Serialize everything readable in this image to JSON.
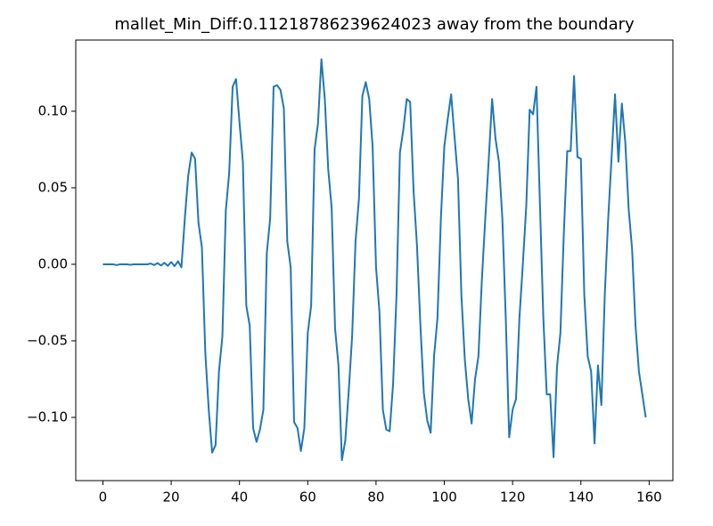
{
  "chart_data": {
    "type": "line",
    "title": "mallet_Min_Diff:0.11218786239624023 away from the boundary",
    "x": [
      0,
      1,
      2,
      3,
      4,
      5,
      6,
      7,
      8,
      9,
      10,
      11,
      12,
      13,
      14,
      15,
      16,
      17,
      18,
      19,
      20,
      21,
      22,
      23,
      24,
      25,
      26,
      27,
      28,
      29,
      30,
      31,
      32,
      33,
      34,
      35,
      36,
      37,
      38,
      39,
      40,
      41,
      42,
      43,
      44,
      45,
      46,
      47,
      48,
      49,
      50,
      51,
      52,
      53,
      54,
      55,
      56,
      57,
      58,
      59,
      60,
      61,
      62,
      63,
      64,
      65,
      66,
      67,
      68,
      69,
      70,
      71,
      72,
      73,
      74,
      75,
      76,
      77,
      78,
      79,
      80,
      81,
      82,
      83,
      84,
      85,
      86,
      87,
      88,
      89,
      90,
      91,
      92,
      93,
      94,
      95,
      96,
      97,
      98,
      99,
      100,
      101,
      102,
      103,
      104,
      105,
      106,
      107,
      108,
      109,
      110,
      111,
      112,
      113,
      114,
      115,
      116,
      117,
      118,
      119,
      120,
      121,
      122,
      123,
      124,
      125,
      126,
      127,
      128,
      129,
      130,
      131,
      132,
      133,
      134,
      135,
      136,
      137,
      138,
      139,
      140,
      141,
      142,
      143,
      144,
      145,
      146,
      147,
      148,
      149,
      150,
      151,
      152,
      153,
      154,
      155,
      156,
      157,
      158,
      159
    ],
    "series": [
      {
        "color": "#1f77b4",
        "values": [
          0,
          0,
          0,
          0,
          -0.0005,
          0,
          0,
          0,
          -0.0003,
          0,
          0,
          0,
          0,
          0,
          0.0005,
          -0.0005,
          0.0008,
          -0.0008,
          0.001,
          -0.001,
          0.0015,
          -0.0012,
          0.002,
          -0.002,
          0.03,
          0.058,
          0.073,
          0.069,
          0.027,
          0.011,
          -0.058,
          -0.095,
          -0.123,
          -0.118,
          -0.07,
          -0.047,
          0.035,
          0.06,
          0.116,
          0.121,
          0.093,
          0.067,
          -0.027,
          -0.04,
          -0.107,
          -0.116,
          -0.108,
          -0.095,
          0.007,
          0.03,
          0.116,
          0.117,
          0.114,
          0.102,
          0.015,
          -0.002,
          -0.103,
          -0.107,
          -0.122,
          -0.107,
          -0.045,
          -0.027,
          0.075,
          0.092,
          0.134,
          0.108,
          0.062,
          0.037,
          -0.042,
          -0.066,
          -0.128,
          -0.115,
          -0.083,
          -0.047,
          0.015,
          0.043,
          0.11,
          0.119,
          0.108,
          0.077,
          -0.002,
          -0.031,
          -0.095,
          -0.108,
          -0.109,
          -0.078,
          -0.02,
          0.073,
          0.088,
          0.108,
          0.106,
          0.048,
          0.012,
          -0.04,
          -0.084,
          -0.102,
          -0.11,
          -0.06,
          -0.035,
          0.03,
          0.077,
          0.095,
          0.111,
          0.083,
          0.056,
          -0.02,
          -0.062,
          -0.088,
          -0.104,
          -0.075,
          -0.06,
          -0.01,
          0.03,
          0.068,
          0.108,
          0.082,
          0.067,
          0.03,
          -0.035,
          -0.113,
          -0.095,
          -0.088,
          -0.035,
          0,
          0.038,
          0.101,
          0.098,
          0.116,
          0.04,
          -0.035,
          -0.085,
          -0.085,
          -0.126,
          -0.067,
          -0.045,
          0.02,
          0.074,
          0.074,
          0.123,
          0.07,
          0.069,
          -0.02,
          -0.06,
          -0.07,
          -0.117,
          -0.066,
          -0.092,
          -0.02,
          0.03,
          0.07,
          0.111,
          0.067,
          0.105,
          0.08,
          0.036,
          0.01,
          -0.04,
          -0.07,
          -0.085,
          -0.1
        ]
      }
    ],
    "xlim": [
      -7.95,
      166.95
    ],
    "xticks": [
      0,
      20,
      40,
      60,
      80,
      100,
      120,
      140,
      160
    ],
    "ylim": [
      -0.1413,
      0.1465
    ],
    "yticks": [
      {
        "value": -0.1,
        "label": "−0.10"
      },
      {
        "value": -0.05,
        "label": "−0.05"
      },
      {
        "value": 0,
        "label": "0.00"
      },
      {
        "value": 0.05,
        "label": "0.05"
      },
      {
        "value": 0.1,
        "label": "0.10"
      }
    ],
    "grid": false
  }
}
